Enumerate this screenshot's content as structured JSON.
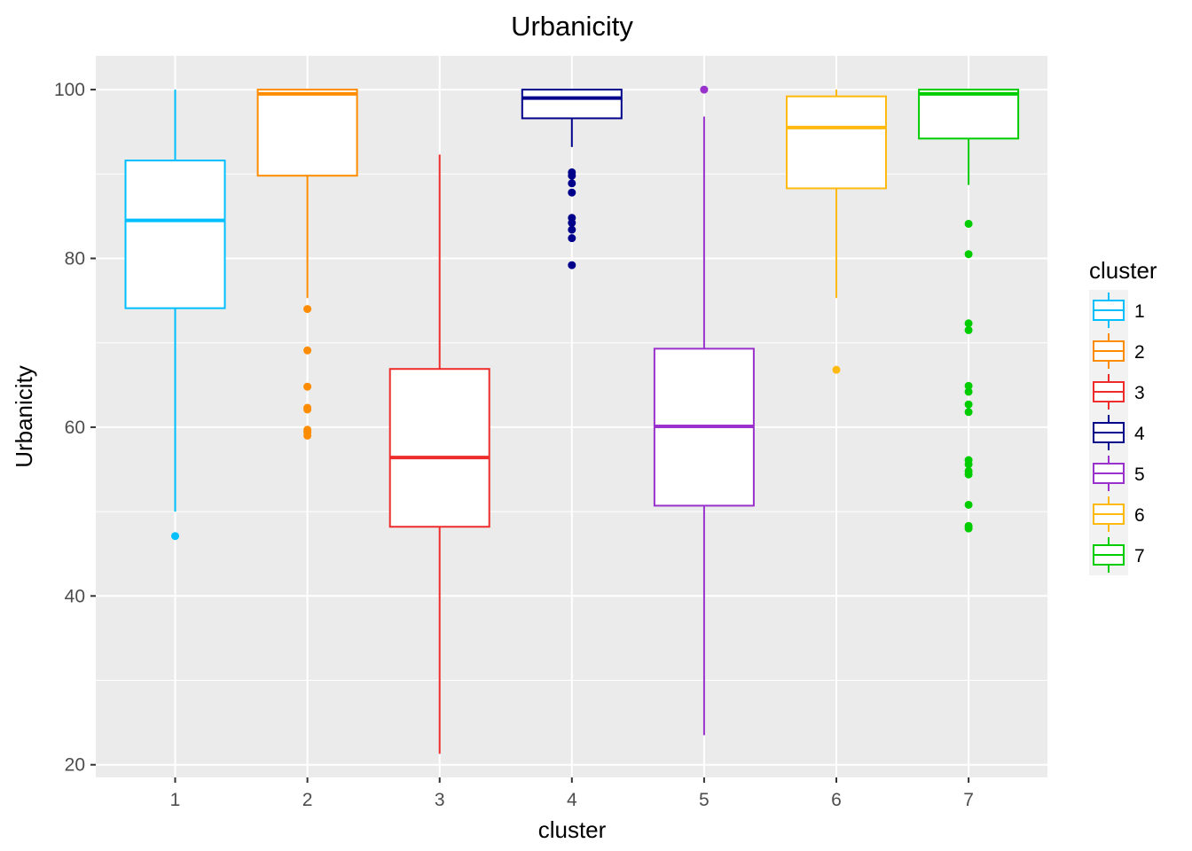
{
  "chart_data": {
    "type": "boxplot",
    "title": "Urbanicity",
    "xlabel": "cluster",
    "ylabel": "Urbanicity",
    "categories": [
      "1",
      "2",
      "3",
      "4",
      "5",
      "6",
      "7"
    ],
    "ylim": [
      18.5,
      104
    ],
    "yticks": [
      20,
      40,
      60,
      80,
      100
    ],
    "grid": true,
    "legend": {
      "title": "cluster",
      "position": "right",
      "items": [
        "1",
        "2",
        "3",
        "4",
        "5",
        "6",
        "7"
      ]
    },
    "series": [
      {
        "category": "1",
        "color": "#00BFFF",
        "whisker_low": 50,
        "q1": 74.1,
        "median": 84.5,
        "q3": 91.6,
        "whisker_high": 100,
        "outliers": [
          47.1
        ]
      },
      {
        "category": "2",
        "color": "#FF8C00",
        "whisker_low": 75.3,
        "q1": 89.8,
        "median": 99.5,
        "q3": 100,
        "whisker_high": 100,
        "outliers": [
          74.0,
          69.1,
          64.8,
          62.3,
          62.1,
          59.7,
          59.4,
          59.0
        ]
      },
      {
        "category": "3",
        "color": "#EE2C2C",
        "whisker_low": 21.3,
        "q1": 48.2,
        "median": 56.4,
        "q3": 66.9,
        "whisker_high": 92.3,
        "outliers": []
      },
      {
        "category": "4",
        "color": "#00008B",
        "whisker_low": 93.2,
        "q1": 96.6,
        "median": 99.0,
        "q3": 100,
        "whisker_high": 100,
        "outliers": [
          90.2,
          89.8,
          88.9,
          87.8,
          84.8,
          84.2,
          83.4,
          82.4,
          79.2
        ]
      },
      {
        "category": "5",
        "color": "#9932CC",
        "whisker_low": 23.5,
        "q1": 50.7,
        "median": 60.1,
        "q3": 69.3,
        "whisker_high": 96.8,
        "outliers": [
          100
        ]
      },
      {
        "category": "6",
        "color": "#FFB90F",
        "whisker_low": 75.3,
        "q1": 88.3,
        "median": 95.5,
        "q3": 99.2,
        "whisker_high": 100,
        "outliers": [
          66.8
        ]
      },
      {
        "category": "7",
        "color": "#00CD00",
        "whisker_low": 88.7,
        "q1": 94.2,
        "median": 99.5,
        "q3": 100,
        "whisker_high": 100,
        "outliers": [
          84.1,
          80.5,
          72.3,
          71.5,
          64.9,
          64.2,
          62.7,
          61.8,
          56.1,
          55.6,
          54.8,
          54.4,
          50.8,
          48.3,
          48.0
        ]
      }
    ]
  }
}
